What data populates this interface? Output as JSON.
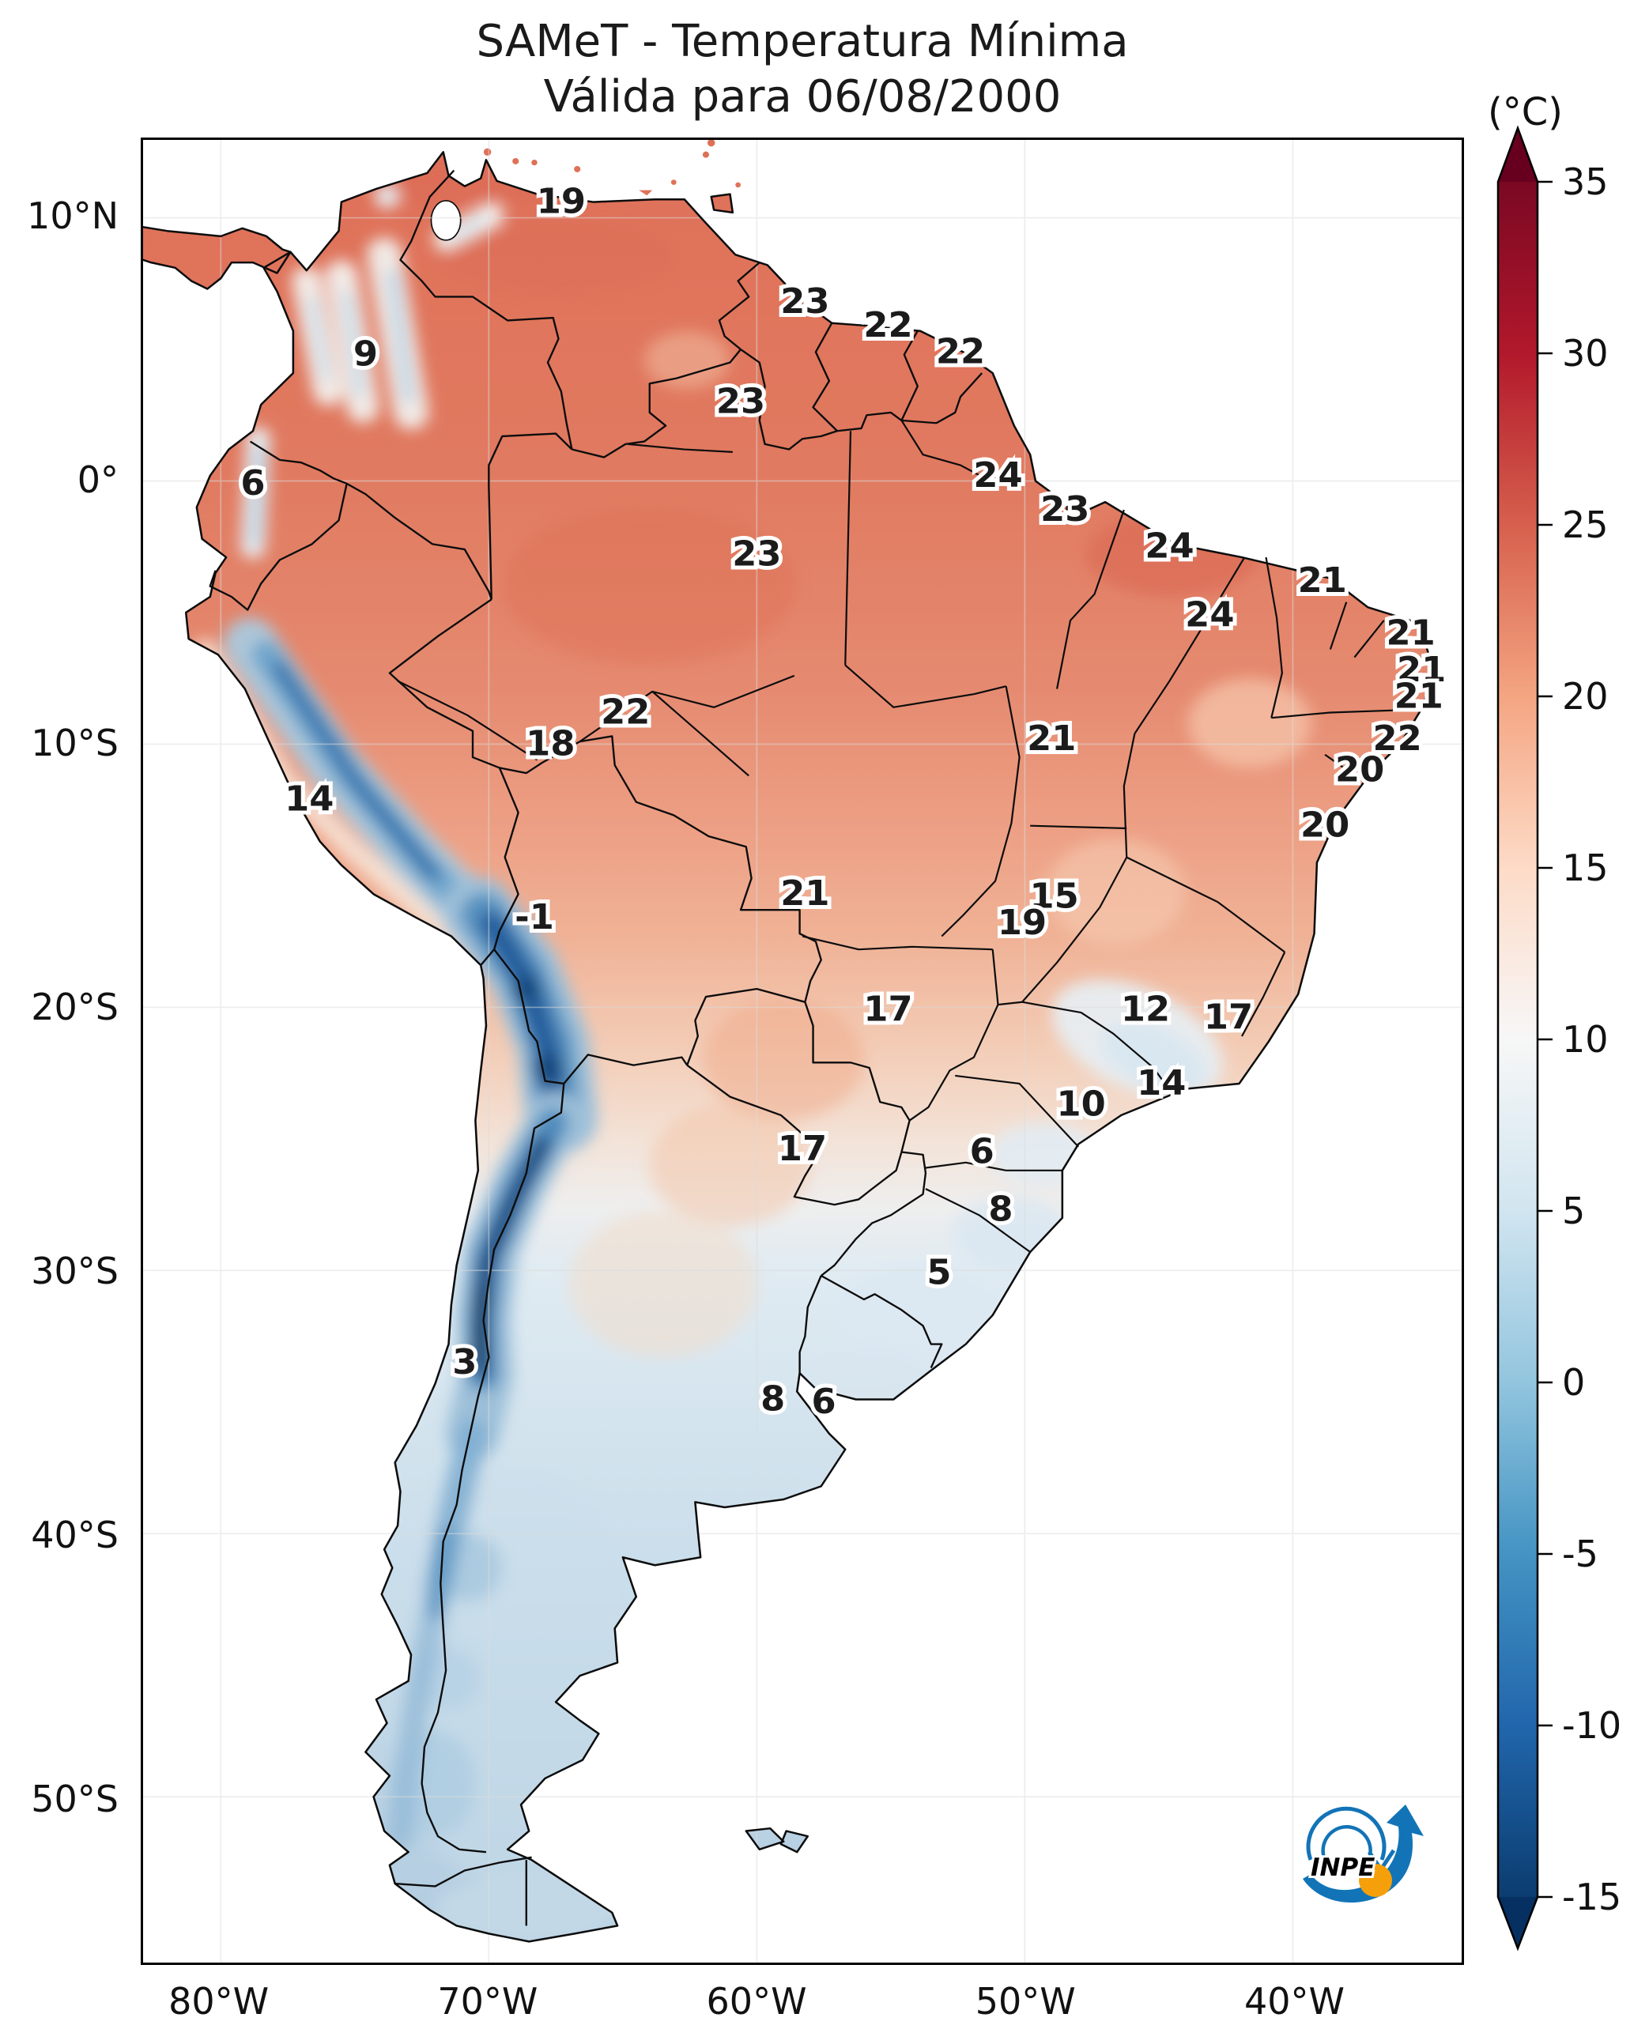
{
  "title": {
    "line1": "SAMeT - Temperatura Mínima",
    "line2": "Válida para 06/08/2000"
  },
  "colorbar": {
    "unit": "(°C)",
    "vmax": 35,
    "vmin": -15,
    "ticks": [
      {
        "label": "35",
        "value": 35
      },
      {
        "label": "30",
        "value": 30
      },
      {
        "label": "25",
        "value": 25
      },
      {
        "label": "20",
        "value": 20
      },
      {
        "label": "15",
        "value": 15
      },
      {
        "label": "10",
        "value": 10
      },
      {
        "label": "5",
        "value": 5
      },
      {
        "label": "0",
        "value": 0
      },
      {
        "label": "-5",
        "value": -5
      },
      {
        "label": "-10",
        "value": -10
      },
      {
        "label": "-15",
        "value": -15
      }
    ],
    "colors": {
      "top_extension": "#67001f",
      "bottom_extension": "#053061",
      "scale": [
        "#7a0823",
        "#b2182b",
        "#d6604d",
        "#f4a582",
        "#fddbc7",
        "#f7f7f7",
        "#d1e5f0",
        "#92c5de",
        "#4393c3",
        "#2166ac",
        "#0b3d70"
      ]
    }
  },
  "axes": {
    "y_ticks": [
      {
        "label": "10°N",
        "lat": 10
      },
      {
        "label": "0°",
        "lat": 0
      },
      {
        "label": "10°S",
        "lat": -10
      },
      {
        "label": "20°S",
        "lat": -20
      },
      {
        "label": "30°S",
        "lat": -30
      },
      {
        "label": "40°S",
        "lat": -40
      },
      {
        "label": "50°S",
        "lat": -50
      }
    ],
    "x_ticks": [
      {
        "label": "80°W",
        "lon": -80
      },
      {
        "label": "70°W",
        "lon": -70
      },
      {
        "label": "60°W",
        "lon": -60
      },
      {
        "label": "50°W",
        "lon": -50
      },
      {
        "label": "40°W",
        "lon": -40
      }
    ]
  },
  "logo": {
    "text": "INPE"
  },
  "chart_data": {
    "type": "heatmap",
    "title": "SAMeT - Temperatura Mínima",
    "subtitle": "Válida para 06/08/2000",
    "region": "South America",
    "units": "°C",
    "value_range": [
      -15,
      35
    ],
    "colorbar_ticks": [
      35,
      30,
      25,
      20,
      15,
      10,
      5,
      0,
      -5,
      -10,
      -15
    ],
    "x_tick_labels": [
      "80°W",
      "70°W",
      "60°W",
      "50°W",
      "40°W"
    ],
    "y_tick_labels": [
      "10°N",
      "0°",
      "10°S",
      "20°S",
      "30°S",
      "40°S",
      "50°S"
    ],
    "points": [
      {
        "value": "19",
        "lon": -67.3,
        "lat": 10.6
      },
      {
        "value": "9",
        "lon": -74.6,
        "lat": 4.8
      },
      {
        "value": "23",
        "lon": -58.2,
        "lat": 6.8
      },
      {
        "value": "22",
        "lon": -55.1,
        "lat": 5.9
      },
      {
        "value": "22",
        "lon": -52.4,
        "lat": 4.9
      },
      {
        "value": "23",
        "lon": -60.6,
        "lat": 3.0
      },
      {
        "value": "6",
        "lon": -78.8,
        "lat": -0.1
      },
      {
        "value": "24",
        "lon": -51.0,
        "lat": 0.2
      },
      {
        "value": "23",
        "lon": -48.5,
        "lat": -1.1
      },
      {
        "value": "23",
        "lon": -60.0,
        "lat": -2.8
      },
      {
        "value": "24",
        "lon": -44.6,
        "lat": -2.5
      },
      {
        "value": "21",
        "lon": -38.9,
        "lat": -3.8
      },
      {
        "value": "24",
        "lon": -43.1,
        "lat": -5.1
      },
      {
        "value": "21",
        "lon": -35.6,
        "lat": -5.8
      },
      {
        "value": "21",
        "lon": -35.2,
        "lat": -7.2
      },
      {
        "value": "21",
        "lon": -35.3,
        "lat": -8.2
      },
      {
        "value": "22",
        "lon": -64.9,
        "lat": -8.8
      },
      {
        "value": "18",
        "lon": -67.7,
        "lat": -10.0
      },
      {
        "value": "21",
        "lon": -49.0,
        "lat": -9.8
      },
      {
        "value": "22",
        "lon": -36.1,
        "lat": -9.8
      },
      {
        "value": "20",
        "lon": -37.5,
        "lat": -11.0
      },
      {
        "value": "14",
        "lon": -76.7,
        "lat": -12.1
      },
      {
        "value": "20",
        "lon": -38.8,
        "lat": -13.1
      },
      {
        "value": "21",
        "lon": -58.2,
        "lat": -15.7
      },
      {
        "value": "15",
        "lon": -48.9,
        "lat": -15.8
      },
      {
        "value": "19",
        "lon": -50.1,
        "lat": -16.8
      },
      {
        "value": "-1",
        "lon": -68.3,
        "lat": -16.6
      },
      {
        "value": "17",
        "lon": -55.1,
        "lat": -20.1
      },
      {
        "value": "12",
        "lon": -45.5,
        "lat": -20.1
      },
      {
        "value": "17",
        "lon": -42.4,
        "lat": -20.4
      },
      {
        "value": "14",
        "lon": -44.9,
        "lat": -22.9
      },
      {
        "value": "10",
        "lon": -47.9,
        "lat": -23.7
      },
      {
        "value": "17",
        "lon": -58.3,
        "lat": -25.4
      },
      {
        "value": "6",
        "lon": -51.6,
        "lat": -25.5
      },
      {
        "value": "8",
        "lon": -50.9,
        "lat": -27.7
      },
      {
        "value": "5",
        "lon": -53.2,
        "lat": -30.1
      },
      {
        "value": "3",
        "lon": -70.9,
        "lat": -33.5
      },
      {
        "value": "8",
        "lon": -59.4,
        "lat": -34.9
      },
      {
        "value": "6",
        "lon": -57.5,
        "lat": -35.0
      }
    ]
  }
}
